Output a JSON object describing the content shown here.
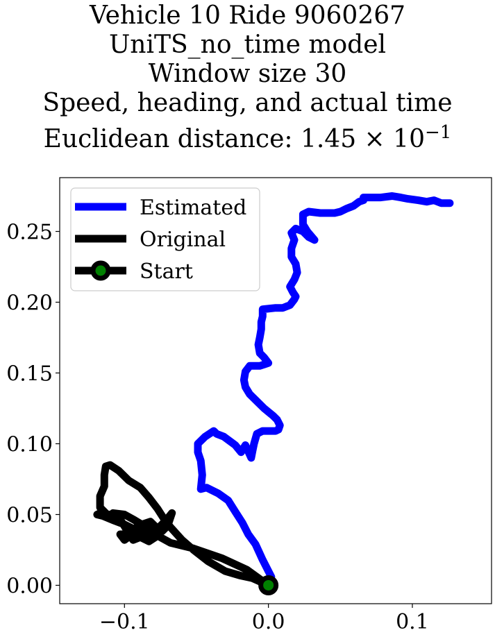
{
  "chart_data": {
    "type": "line",
    "title_lines": [
      "Vehicle 10 Ride 9060267",
      "UniTS_no_time model",
      "Window size 30",
      "Speed, heading, and actual time",
      "Euclidean distance: 1.45 × 10",
      "−1"
    ],
    "xlim": [
      -0.145,
      0.155
    ],
    "ylim": [
      -0.013,
      0.288
    ],
    "x_ticks": [
      {
        "value": -0.1,
        "label": "−0.1"
      },
      {
        "value": 0.0,
        "label": "0.0"
      },
      {
        "value": 0.1,
        "label": "0.1"
      }
    ],
    "y_ticks": [
      {
        "value": 0.0,
        "label": "0.00"
      },
      {
        "value": 0.05,
        "label": "0.05"
      },
      {
        "value": 0.1,
        "label": "0.10"
      },
      {
        "value": 0.15,
        "label": "0.15"
      },
      {
        "value": 0.2,
        "label": "0.20"
      },
      {
        "value": 0.25,
        "label": "0.25"
      }
    ],
    "grid": false,
    "legend_position": "top-left",
    "series": [
      {
        "name": "Estimated",
        "color": "#0000ff",
        "points": [
          [
            0,
            0
          ],
          [
            0.002,
            0.006
          ],
          [
            -0.004,
            0.018
          ],
          [
            -0.009,
            0.029
          ],
          [
            -0.014,
            0.036
          ],
          [
            -0.018,
            0.044
          ],
          [
            -0.023,
            0.052
          ],
          [
            -0.028,
            0.06
          ],
          [
            -0.035,
            0.065
          ],
          [
            -0.043,
            0.069
          ],
          [
            -0.047,
            0.068
          ],
          [
            -0.046,
            0.078
          ],
          [
            -0.047,
            0.088
          ],
          [
            -0.049,
            0.094
          ],
          [
            -0.049,
            0.1
          ],
          [
            -0.044,
            0.105
          ],
          [
            -0.038,
            0.109
          ],
          [
            -0.036,
            0.107
          ],
          [
            -0.031,
            0.105
          ],
          [
            -0.027,
            0.102
          ],
          [
            -0.023,
            0.099
          ],
          [
            -0.019,
            0.094
          ],
          [
            -0.016,
            0.099
          ],
          [
            -0.012,
            0.09
          ],
          [
            -0.011,
            0.095
          ],
          [
            -0.01,
            0.1
          ],
          [
            -0.008,
            0.107
          ],
          [
            -0.004,
            0.109
          ],
          [
            0.005,
            0.109
          ],
          [
            0.007,
            0.11
          ],
          [
            0.008,
            0.113
          ],
          [
            0.006,
            0.117
          ],
          [
            0.003,
            0.12
          ],
          [
            -0.003,
            0.125
          ],
          [
            -0.007,
            0.129
          ],
          [
            -0.013,
            0.135
          ],
          [
            -0.016,
            0.14
          ],
          [
            -0.017,
            0.145
          ],
          [
            -0.016,
            0.151
          ],
          [
            -0.013,
            0.155
          ],
          [
            -0.006,
            0.155
          ],
          [
            0,
            0.157
          ],
          [
            -0.003,
            0.161
          ],
          [
            -0.006,
            0.164
          ],
          [
            -0.007,
            0.17
          ],
          [
            -0.006,
            0.175
          ],
          [
            -0.005,
            0.181
          ],
          [
            -0.005,
            0.186
          ],
          [
            -0.004,
            0.19
          ],
          [
            -0.004,
            0.195
          ],
          [
            0.005,
            0.196
          ],
          [
            0.01,
            0.196
          ],
          [
            0.015,
            0.198
          ],
          [
            0.018,
            0.202
          ],
          [
            0.019,
            0.204
          ],
          [
            0.017,
            0.207
          ],
          [
            0.015,
            0.211
          ],
          [
            0.018,
            0.216
          ],
          [
            0.02,
            0.221
          ],
          [
            0.019,
            0.227
          ],
          [
            0.016,
            0.232
          ],
          [
            0.016,
            0.238
          ],
          [
            0.018,
            0.244
          ],
          [
            0.016,
            0.249
          ],
          [
            0.019,
            0.252
          ],
          [
            0.024,
            0.25
          ],
          [
            0.028,
            0.246
          ],
          [
            0.032,
            0.244
          ],
          [
            0.027,
            0.25
          ],
          [
            0.024,
            0.255
          ],
          [
            0.024,
            0.262
          ],
          [
            0.028,
            0.264
          ],
          [
            0.036,
            0.263
          ],
          [
            0.046,
            0.263
          ],
          [
            0.05,
            0.264
          ],
          [
            0.054,
            0.266
          ],
          [
            0.059,
            0.268
          ],
          [
            0.063,
            0.271
          ],
          [
            0.066,
            0.272
          ],
          [
            0.066,
            0.274
          ],
          [
            0.07,
            0.274
          ],
          [
            0.078,
            0.274
          ],
          [
            0.086,
            0.275
          ],
          [
            0.092,
            0.274
          ],
          [
            0.097,
            0.273
          ],
          [
            0.104,
            0.272
          ],
          [
            0.11,
            0.271
          ],
          [
            0.115,
            0.272
          ],
          [
            0.12,
            0.27
          ],
          [
            0.126,
            0.27
          ]
        ]
      },
      {
        "name": "Original",
        "color": "#000000",
        "points": [
          [
            0,
            0
          ],
          [
            -0.015,
            0.011
          ],
          [
            -0.032,
            0.019
          ],
          [
            -0.052,
            0.026
          ],
          [
            -0.068,
            0.03
          ],
          [
            -0.077,
            0.035
          ],
          [
            -0.083,
            0.031
          ],
          [
            -0.089,
            0.034
          ],
          [
            -0.094,
            0.032
          ],
          [
            -0.099,
            0.04
          ],
          [
            -0.102,
            0.045
          ],
          [
            -0.105,
            0.05
          ],
          [
            -0.108,
            0.051
          ],
          [
            -0.1,
            0.05
          ],
          [
            -0.093,
            0.046
          ],
          [
            -0.088,
            0.043
          ],
          [
            -0.082,
            0.045
          ],
          [
            -0.077,
            0.04
          ],
          [
            -0.071,
            0.046
          ],
          [
            -0.067,
            0.051
          ],
          [
            -0.07,
            0.042
          ],
          [
            -0.074,
            0.038
          ],
          [
            -0.08,
            0.04
          ],
          [
            -0.085,
            0.04
          ],
          [
            -0.09,
            0.044
          ],
          [
            -0.092,
            0.04
          ],
          [
            -0.095,
            0.036
          ],
          [
            -0.103,
            0.036
          ],
          [
            -0.1,
            0.032
          ],
          [
            -0.092,
            0.038
          ],
          [
            -0.085,
            0.033
          ],
          [
            -0.079,
            0.035
          ],
          [
            -0.085,
            0.037
          ],
          [
            -0.094,
            0.04
          ],
          [
            -0.1,
            0.043
          ],
          [
            -0.108,
            0.046
          ],
          [
            -0.115,
            0.049
          ],
          [
            -0.119,
            0.05
          ],
          [
            -0.115,
            0.052
          ],
          [
            -0.11,
            0.048
          ],
          [
            -0.106,
            0.05
          ],
          [
            -0.112,
            0.05
          ],
          [
            -0.117,
            0.055
          ],
          [
            -0.117,
            0.063
          ],
          [
            -0.114,
            0.07
          ],
          [
            -0.114,
            0.078
          ],
          [
            -0.113,
            0.084
          ],
          [
            -0.11,
            0.085
          ],
          [
            -0.104,
            0.081
          ],
          [
            -0.097,
            0.074
          ],
          [
            -0.089,
            0.069
          ],
          [
            -0.083,
            0.062
          ],
          [
            -0.077,
            0.054
          ],
          [
            -0.072,
            0.046
          ],
          [
            -0.068,
            0.041
          ],
          [
            -0.06,
            0.032
          ],
          [
            -0.052,
            0.025
          ],
          [
            -0.042,
            0.017
          ],
          [
            -0.03,
            0.01
          ],
          [
            -0.02,
            0.007
          ],
          [
            -0.011,
            0.005
          ],
          [
            0,
            0
          ]
        ]
      },
      {
        "name": "Start",
        "color": "#008000",
        "edge_color": "#000000",
        "points": [
          [
            0,
            0
          ]
        ]
      }
    ]
  }
}
